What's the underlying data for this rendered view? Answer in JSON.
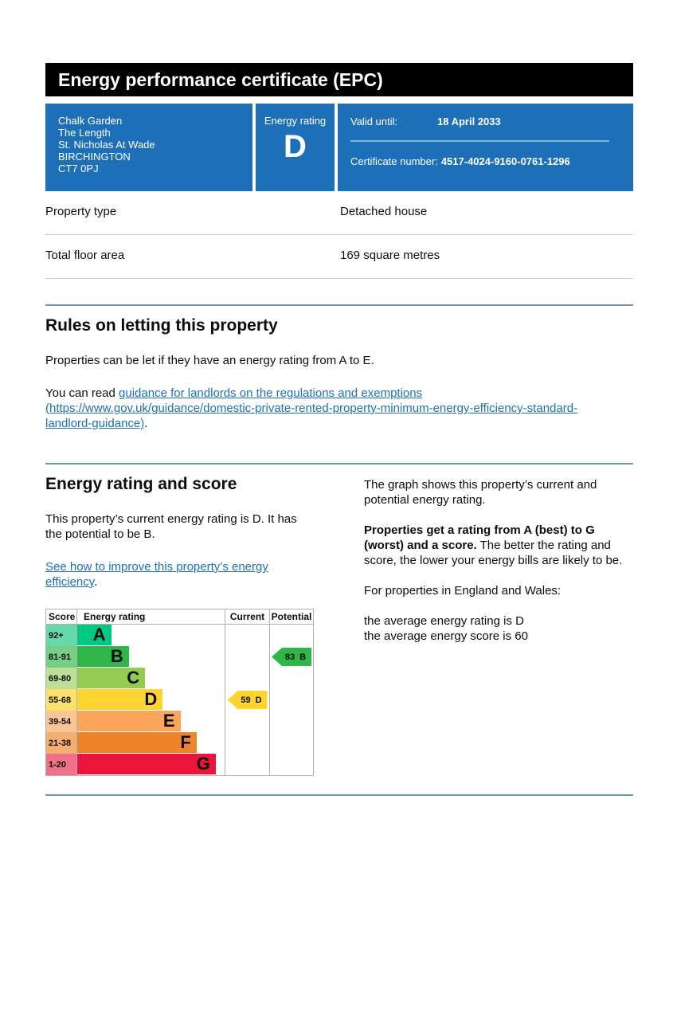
{
  "header": {
    "title": "Energy performance certificate (EPC)"
  },
  "colors": {
    "brand_blue": "#1d70b8",
    "link_blue": "#1d70b8",
    "section_rule_blue": "#6d95b4",
    "table_divider_grey": "#cccccc",
    "title_bar_black": "#000000"
  },
  "summary": {
    "address_lines": [
      "Chalk Garden",
      "The Length",
      "St. Nicholas At Wade",
      "BIRCHINGTON",
      "CT7 0PJ"
    ],
    "energy_rating_label": "Energy rating",
    "energy_rating": "D",
    "valid_until_label": "Valid until:",
    "valid_until": "18 April 2033",
    "certificate_number_label": "Certificate number:",
    "certificate_number": "4517-4024-9160-0761-1296"
  },
  "property_facts": {
    "rows": [
      {
        "label": "Property type",
        "value": "Detached house"
      },
      {
        "label": "Total floor area",
        "value": "169 square metres"
      }
    ]
  },
  "rules_section": {
    "heading": "Rules on letting this property",
    "paragraph1": "Properties can be let if they have an energy rating from A to E.",
    "paragraph2_prefix": "You can read ",
    "link_text": "guidance for landlords on the regulations and exemptions (https://www.gov.uk/guidance/domestic-private-rented-property-minimum-energy-efficiency-standard-landlord-guidance)",
    "paragraph2_suffix": "."
  },
  "rating_section": {
    "heading": "Energy rating and score",
    "paragraph1": "This property’s current energy rating is D. It has the potential to be B.",
    "link_text": "See how to improve this property’s energy efficiency",
    "link_suffix": ".",
    "right_paragraph1": "The graph shows this property’s current and potential energy rating.",
    "right_bold": "Properties get a rating from A (best) to G (worst) and a score.",
    "right_paragraph2": " The better the rating and score, the lower your energy bills are likely to be.",
    "right_paragraph3": "For properties in England and Wales:",
    "average_lines": [
      "the average energy rating is D",
      "the average energy score is 60"
    ]
  },
  "chart_data": {
    "type": "bar",
    "title": "Energy rating and score chart",
    "columns": [
      "Score",
      "Energy rating",
      "Current",
      "Potential"
    ],
    "bands": [
      {
        "score": "92+",
        "letter": "A",
        "color": "#00c781",
        "tint": "#66d9ab",
        "width_pct": 23
      },
      {
        "score": "81-91",
        "letter": "B",
        "color": "#2eb648",
        "tint": "#77cf87",
        "width_pct": 35
      },
      {
        "score": "69-80",
        "letter": "C",
        "color": "#95ca53",
        "tint": "#bfdf97",
        "width_pct": 46
      },
      {
        "score": "55-68",
        "letter": "D",
        "color": "#fed530",
        "tint": "#fee06e",
        "width_pct": 58
      },
      {
        "score": "39-54",
        "letter": "E",
        "color": "#f9a65c",
        "tint": "#fbc695",
        "width_pct": 70
      },
      {
        "score": "21-38",
        "letter": "F",
        "color": "#ee8329",
        "tint": "#f4ad71",
        "width_pct": 81
      },
      {
        "score": "1-20",
        "letter": "G",
        "color": "#e9153b",
        "tint": "#f17089",
        "width_pct": 94
      }
    ],
    "current": {
      "score": 59,
      "letter": "D",
      "band_index": 3,
      "color": "#fed530"
    },
    "potential": {
      "score": 83,
      "letter": "B",
      "band_index": 1,
      "color": "#2eb648"
    }
  }
}
